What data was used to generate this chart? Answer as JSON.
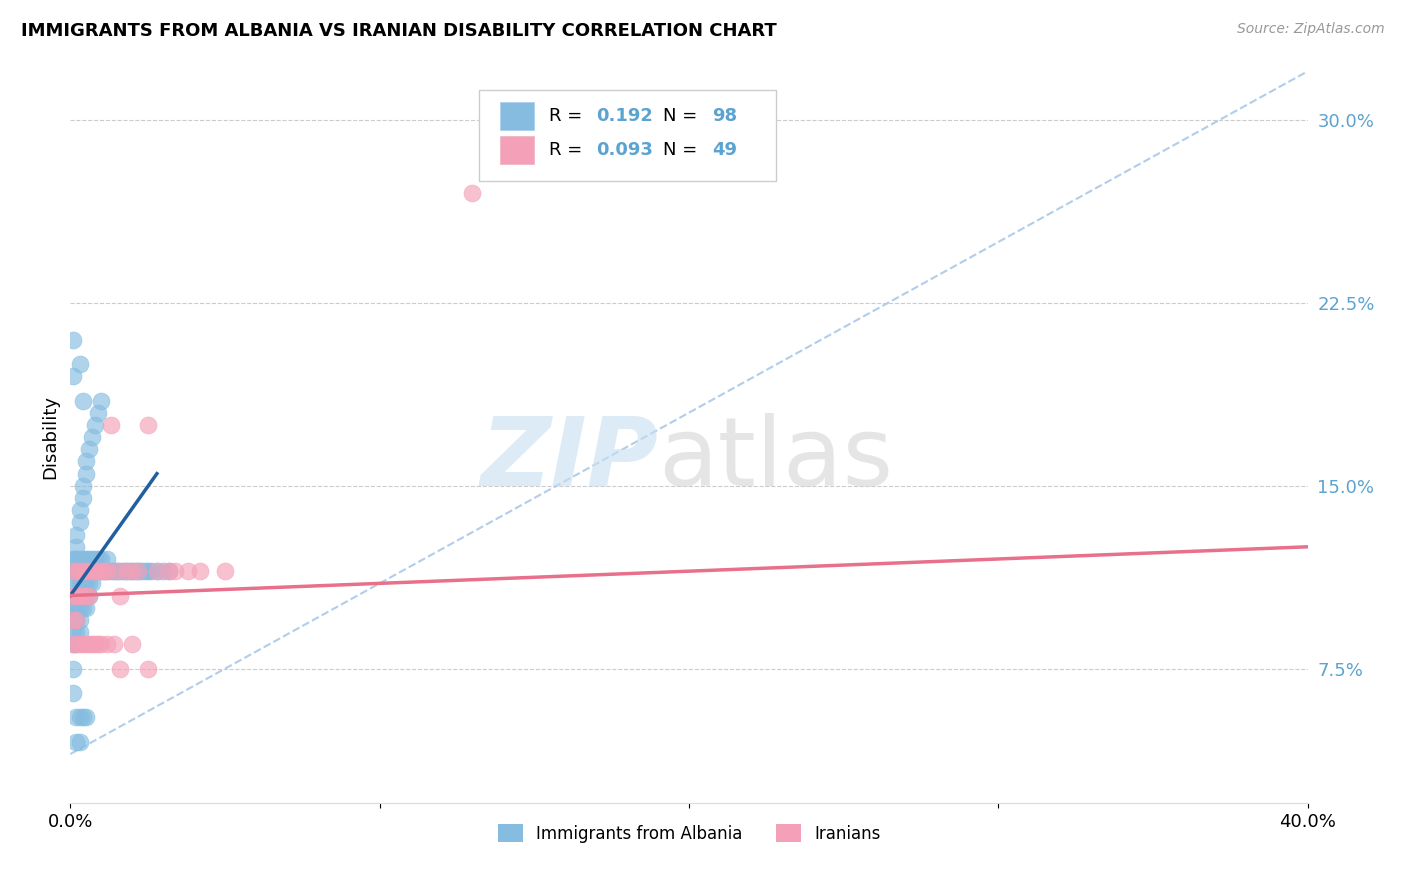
{
  "title": "IMMIGRANTS FROM ALBANIA VS IRANIAN DISABILITY CORRELATION CHART",
  "source": "Source: ZipAtlas.com",
  "ylabel": "Disability",
  "r_albania": 0.192,
  "n_albania": 98,
  "r_iranians": 0.093,
  "n_iranians": 49,
  "color_albania": "#85bce0",
  "color_iranians": "#f4a0b8",
  "trendline_albania_color": "#2060a0",
  "trendline_iranians_color": "#e8708a",
  "dashed_line_color": "#aac8e8",
  "ytick_color_blue": "#5ba3d0",
  "xmin": 0.0,
  "xmax": 0.4,
  "ymin": 0.02,
  "ymax": 0.32,
  "yticks_right": [
    0.075,
    0.15,
    0.225,
    0.3
  ],
  "ytick_labels_right": [
    "7.5%",
    "15.0%",
    "22.5%",
    "30.0%"
  ],
  "albania_x": [
    0.001,
    0.001,
    0.001,
    0.001,
    0.001,
    0.001,
    0.001,
    0.001,
    0.001,
    0.001,
    0.002,
    0.002,
    0.002,
    0.002,
    0.002,
    0.002,
    0.002,
    0.002,
    0.002,
    0.002,
    0.002,
    0.002,
    0.002,
    0.002,
    0.002,
    0.003,
    0.003,
    0.003,
    0.003,
    0.003,
    0.003,
    0.003,
    0.003,
    0.003,
    0.004,
    0.004,
    0.004,
    0.004,
    0.004,
    0.004,
    0.004,
    0.005,
    0.005,
    0.005,
    0.005,
    0.005,
    0.005,
    0.005,
    0.006,
    0.006,
    0.006,
    0.006,
    0.006,
    0.007,
    0.007,
    0.007,
    0.007,
    0.008,
    0.008,
    0.008,
    0.009,
    0.009,
    0.009,
    0.01,
    0.01,
    0.01,
    0.011,
    0.012,
    0.012,
    0.013,
    0.014,
    0.015,
    0.016,
    0.017,
    0.018,
    0.019,
    0.02,
    0.021,
    0.022,
    0.023,
    0.024,
    0.025,
    0.026,
    0.028,
    0.03,
    0.032,
    0.001,
    0.001,
    0.003,
    0.004,
    0.001,
    0.001,
    0.002,
    0.002,
    0.003,
    0.003,
    0.004,
    0.005
  ],
  "albania_y": [
    0.115,
    0.12,
    0.105,
    0.11,
    0.095,
    0.1,
    0.085,
    0.09,
    0.1,
    0.115,
    0.115,
    0.12,
    0.11,
    0.105,
    0.1,
    0.095,
    0.09,
    0.085,
    0.115,
    0.12,
    0.105,
    0.1,
    0.095,
    0.13,
    0.125,
    0.115,
    0.12,
    0.11,
    0.105,
    0.1,
    0.095,
    0.09,
    0.135,
    0.14,
    0.115,
    0.12,
    0.11,
    0.105,
    0.1,
    0.145,
    0.15,
    0.115,
    0.12,
    0.11,
    0.105,
    0.1,
    0.155,
    0.16,
    0.115,
    0.12,
    0.11,
    0.105,
    0.165,
    0.115,
    0.12,
    0.11,
    0.17,
    0.115,
    0.12,
    0.175,
    0.115,
    0.12,
    0.18,
    0.115,
    0.12,
    0.185,
    0.115,
    0.115,
    0.12,
    0.115,
    0.115,
    0.115,
    0.115,
    0.115,
    0.115,
    0.115,
    0.115,
    0.115,
    0.115,
    0.115,
    0.115,
    0.115,
    0.115,
    0.115,
    0.115,
    0.115,
    0.21,
    0.195,
    0.2,
    0.185,
    0.075,
    0.065,
    0.055,
    0.045,
    0.055,
    0.045,
    0.055,
    0.055
  ],
  "iranians_x": [
    0.001,
    0.001,
    0.001,
    0.002,
    0.002,
    0.002,
    0.003,
    0.003,
    0.004,
    0.004,
    0.005,
    0.005,
    0.006,
    0.006,
    0.007,
    0.008,
    0.009,
    0.01,
    0.011,
    0.012,
    0.013,
    0.015,
    0.016,
    0.018,
    0.02,
    0.022,
    0.025,
    0.028,
    0.032,
    0.034,
    0.038,
    0.042,
    0.05,
    0.001,
    0.002,
    0.003,
    0.004,
    0.005,
    0.006,
    0.007,
    0.008,
    0.009,
    0.01,
    0.012,
    0.014,
    0.016,
    0.02,
    0.025,
    0.13
  ],
  "iranians_y": [
    0.115,
    0.105,
    0.095,
    0.115,
    0.105,
    0.095,
    0.115,
    0.105,
    0.115,
    0.105,
    0.115,
    0.105,
    0.115,
    0.105,
    0.115,
    0.115,
    0.115,
    0.115,
    0.115,
    0.115,
    0.175,
    0.115,
    0.105,
    0.115,
    0.115,
    0.115,
    0.175,
    0.115,
    0.115,
    0.115,
    0.115,
    0.115,
    0.115,
    0.085,
    0.085,
    0.085,
    0.085,
    0.085,
    0.085,
    0.085,
    0.085,
    0.085,
    0.085,
    0.085,
    0.085,
    0.075,
    0.085,
    0.075,
    0.27
  ],
  "albania_trend_x": [
    0.0,
    0.028
  ],
  "albania_trend_y": [
    0.105,
    0.155
  ],
  "iranians_trend_x": [
    0.0,
    0.4
  ],
  "iranians_trend_y": [
    0.105,
    0.125
  ]
}
